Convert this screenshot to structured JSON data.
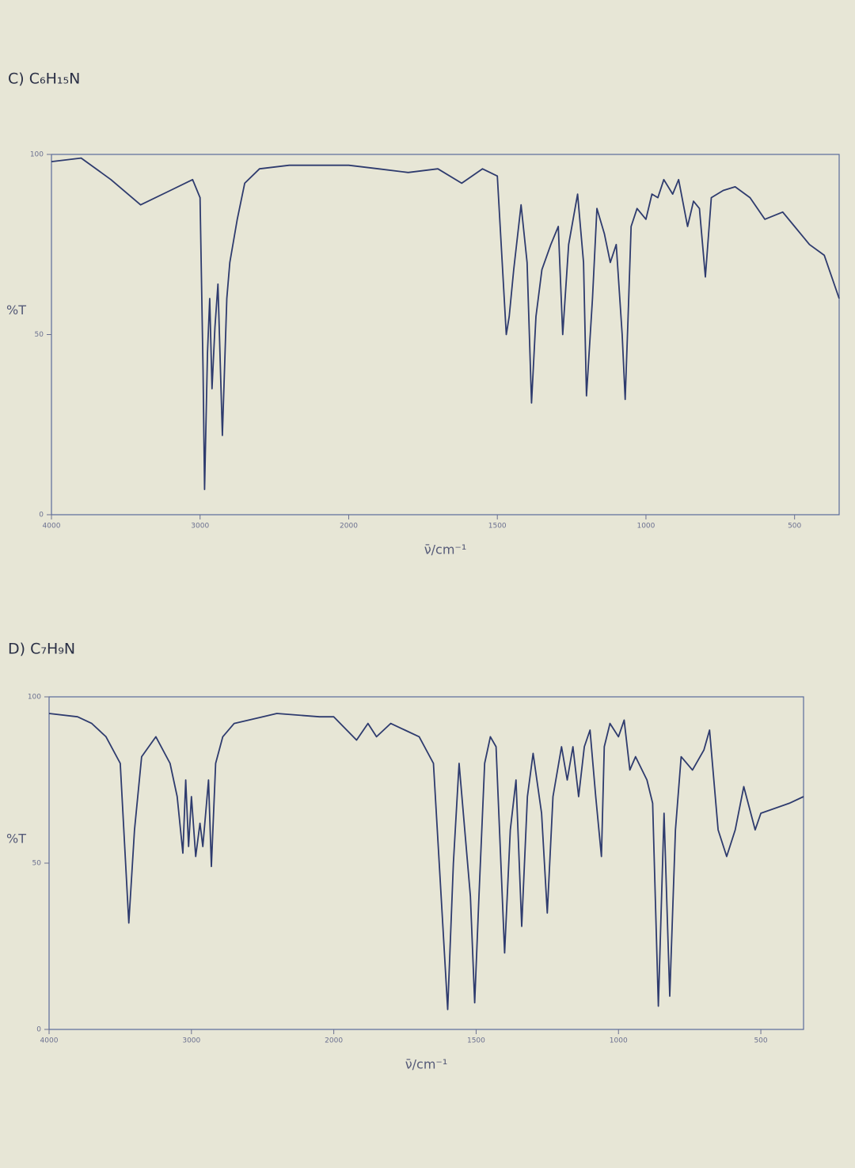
{
  "chart_data": [
    {
      "type": "line",
      "title": "C) C₆H₁₅N",
      "xlabel": "ν̄/cm⁻¹",
      "ylabel": "%T",
      "color": "#2e3b6e",
      "xlim": [
        4000,
        350
      ],
      "ylim": [
        0,
        100
      ],
      "xticks": [
        4000,
        3000,
        2000,
        1500,
        1000,
        500
      ],
      "yticks": [
        0,
        50,
        100
      ],
      "x": [
        4000,
        3800,
        3600,
        3400,
        3200,
        3050,
        3000,
        2980,
        2970,
        2950,
        2935,
        2920,
        2900,
        2880,
        2850,
        2820,
        2800,
        2750,
        2700,
        2600,
        2400,
        2200,
        2000,
        1900,
        1800,
        1700,
        1620,
        1550,
        1500,
        1470,
        1460,
        1445,
        1420,
        1400,
        1385,
        1370,
        1350,
        1320,
        1295,
        1280,
        1260,
        1230,
        1210,
        1200,
        1180,
        1165,
        1140,
        1120,
        1100,
        1080,
        1070,
        1060,
        1050,
        1030,
        1000,
        980,
        960,
        940,
        910,
        890,
        860,
        840,
        820,
        800,
        780,
        740,
        700,
        650,
        600,
        540,
        500,
        450,
        400,
        350
      ],
      "values": [
        98,
        99,
        93,
        86,
        90,
        93,
        88,
        40,
        7,
        45,
        60,
        35,
        52,
        64,
        22,
        60,
        70,
        82,
        92,
        96,
        97,
        97,
        97,
        96,
        95,
        96,
        92,
        96,
        94,
        50,
        55,
        68,
        86,
        70,
        31,
        55,
        68,
        75,
        80,
        50,
        75,
        89,
        70,
        33,
        60,
        85,
        78,
        70,
        75,
        50,
        32,
        55,
        80,
        85,
        82,
        89,
        88,
        93,
        89,
        93,
        80,
        87,
        85,
        66,
        88,
        90,
        91,
        88,
        82,
        84,
        80,
        75,
        72,
        60
      ]
    },
    {
      "type": "line",
      "title": "D) C₇H₉N",
      "xlabel": "ν̄/cm⁻¹",
      "ylabel": "%T",
      "color": "#2e3b6e",
      "xlim": [
        4000,
        350
      ],
      "ylim": [
        0,
        100
      ],
      "xticks": [
        4000,
        3000,
        2000,
        1500,
        1000,
        500
      ],
      "yticks": [
        0,
        50,
        100
      ],
      "x": [
        4000,
        3800,
        3700,
        3600,
        3500,
        3440,
        3400,
        3350,
        3250,
        3150,
        3100,
        3060,
        3040,
        3020,
        3000,
        2970,
        2940,
        2920,
        2880,
        2860,
        2830,
        2780,
        2700,
        2500,
        2400,
        2100,
        2000,
        1920,
        1880,
        1850,
        1800,
        1750,
        1700,
        1650,
        1600,
        1580,
        1560,
        1520,
        1505,
        1490,
        1470,
        1450,
        1430,
        1400,
        1380,
        1360,
        1340,
        1320,
        1300,
        1270,
        1250,
        1230,
        1200,
        1180,
        1160,
        1140,
        1120,
        1100,
        1080,
        1060,
        1050,
        1030,
        1000,
        980,
        960,
        940,
        900,
        880,
        860,
        840,
        820,
        800,
        780,
        740,
        700,
        680,
        650,
        620,
        590,
        560,
        520,
        500,
        400,
        350
      ],
      "values": [
        95,
        94,
        92,
        88,
        80,
        32,
        60,
        82,
        88,
        80,
        70,
        53,
        75,
        55,
        70,
        52,
        62,
        55,
        75,
        49,
        80,
        88,
        92,
        94,
        95,
        94,
        94,
        87,
        92,
        88,
        92,
        90,
        88,
        80,
        6,
        50,
        80,
        40,
        8,
        40,
        80,
        88,
        85,
        23,
        60,
        75,
        31,
        70,
        83,
        65,
        35,
        70,
        85,
        75,
        85,
        70,
        85,
        90,
        70,
        52,
        85,
        92,
        88,
        93,
        78,
        82,
        75,
        68,
        7,
        65,
        10,
        60,
        82,
        78,
        84,
        90,
        60,
        52,
        60,
        73,
        60,
        65,
        68,
        70
      ]
    }
  ]
}
